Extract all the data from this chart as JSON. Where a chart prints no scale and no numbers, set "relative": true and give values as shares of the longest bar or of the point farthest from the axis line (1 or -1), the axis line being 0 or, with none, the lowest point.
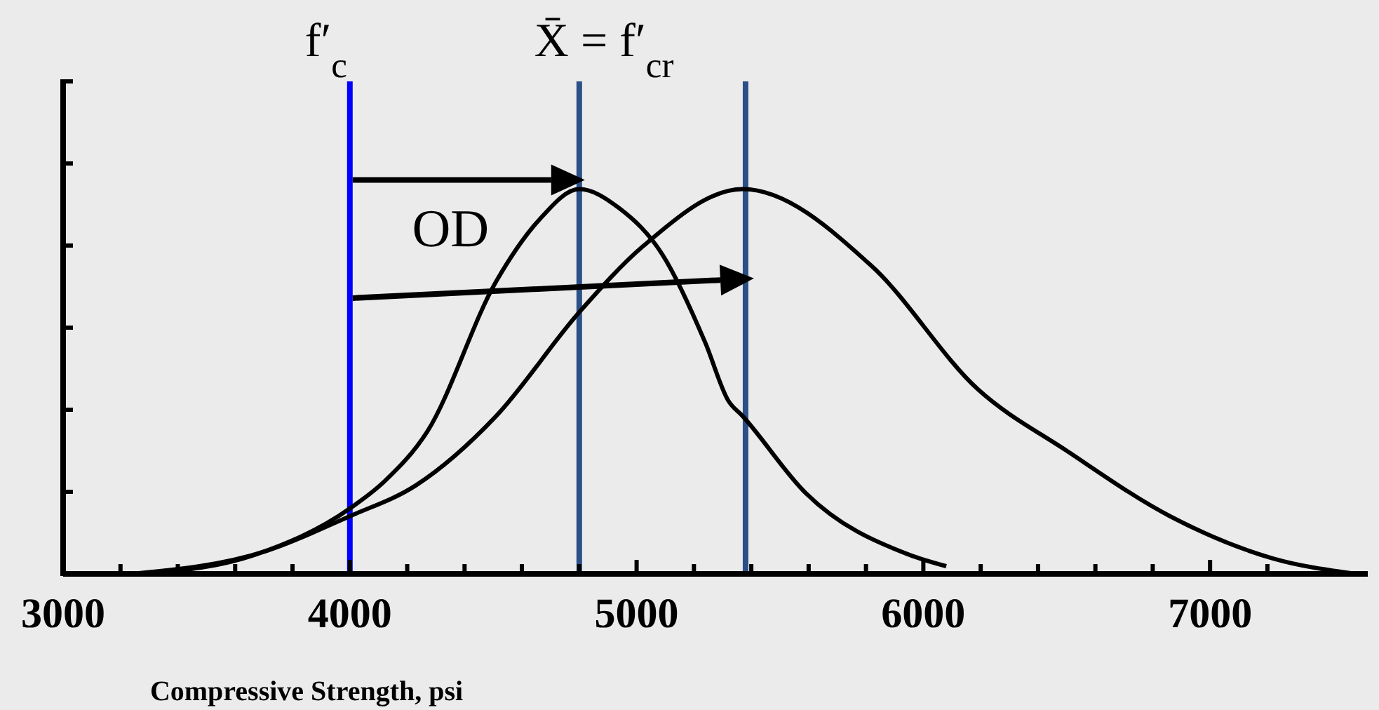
{
  "chart_data": {
    "type": "line",
    "relative": true,
    "xlabel": "Compressive Strength, psi",
    "xlim": [
      3000,
      7550
    ],
    "xticks": [
      3000,
      {
        "value": 3200,
        "label": null
      },
      {
        "value": 3400,
        "label": null
      },
      {
        "value": 3600,
        "label": null
      },
      {
        "value": 3800,
        "label": null
      },
      4000,
      {
        "value": 4200,
        "label": null
      },
      {
        "value": 4400,
        "label": null
      },
      {
        "value": 4600,
        "label": null
      },
      {
        "value": 4800,
        "label": null
      },
      5000,
      {
        "value": 5200,
        "label": null
      },
      {
        "value": 5400,
        "label": null
      },
      {
        "value": 5600,
        "label": null
      },
      {
        "value": 5800,
        "label": null
      },
      6000,
      {
        "value": 6200,
        "label": null
      },
      {
        "value": 6400,
        "label": null
      },
      {
        "value": 6600,
        "label": null
      },
      {
        "value": 6800,
        "label": null
      },
      7000,
      {
        "value": 7200,
        "label": null
      }
    ],
    "series": [
      {
        "color": "#000000",
        "x": [
          3300,
          3670,
          4000,
          4120,
          4270,
          4510,
          4660,
          4800,
          4940,
          5090,
          5240,
          5320,
          5370,
          5590,
          5950,
          6080
        ],
        "values": [
          0,
          0.05,
          0.17,
          0.24,
          0.37,
          0.76,
          0.92,
          1,
          0.95,
          0.83,
          0.6,
          0.45,
          0.41,
          0.21,
          0.05,
          0.02
        ]
      },
      {
        "color": "#000000",
        "x": [
          3240,
          3710,
          4000,
          4230,
          4510,
          4800,
          5020,
          5370,
          5820,
          6190,
          6500,
          6860,
          7220,
          7510
        ],
        "values": [
          0,
          0.06,
          0.15,
          0.23,
          0.41,
          0.68,
          0.85,
          1,
          0.8,
          0.48,
          0.32,
          0.15,
          0.04,
          0
        ]
      }
    ],
    "ref_lines": [
      {
        "axis": "x",
        "value": 4000,
        "label": "f′$_{c}$",
        "color": "#0000ff"
      },
      {
        "axis": "x",
        "value": 4800,
        "label": "X̄ = f′$_{cr}$",
        "color": "#2b5088"
      },
      {
        "axis": "x",
        "value": 5380,
        "color": "#2b5088"
      }
    ],
    "annotations": [
      "OD"
    ]
  }
}
